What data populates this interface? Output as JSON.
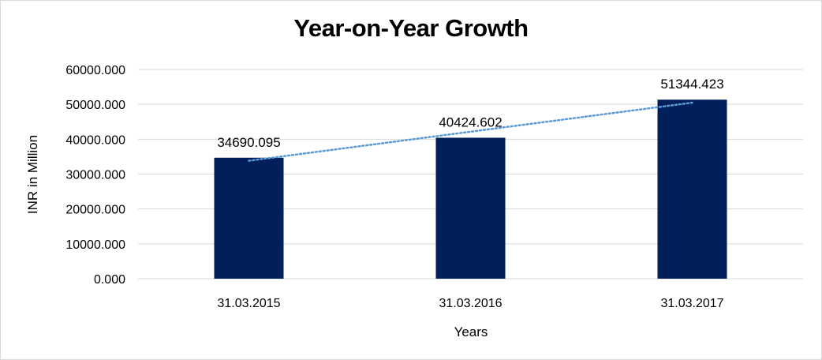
{
  "chart_data": {
    "type": "bar",
    "title": "Year-on-Year Growth",
    "xlabel": "Years",
    "ylabel": "INR in Million",
    "categories": [
      "31.03.2015",
      "31.03.2016",
      "31.03.2017"
    ],
    "values": [
      34690.095,
      40424.602,
      51344.423
    ],
    "value_labels": [
      "34690.095",
      "40424.602",
      "51344.423"
    ],
    "ylim": [
      0,
      60000
    ],
    "yticks": [
      "0.000",
      "10000.000",
      "20000.000",
      "30000.000",
      "40000.000",
      "50000.000",
      "60000.000"
    ],
    "grid": true,
    "trendline": "linear, dotted",
    "colors": {
      "bar": "#001f5b",
      "trend": "#5b9bd5",
      "grid": "#d9d9d9"
    }
  }
}
